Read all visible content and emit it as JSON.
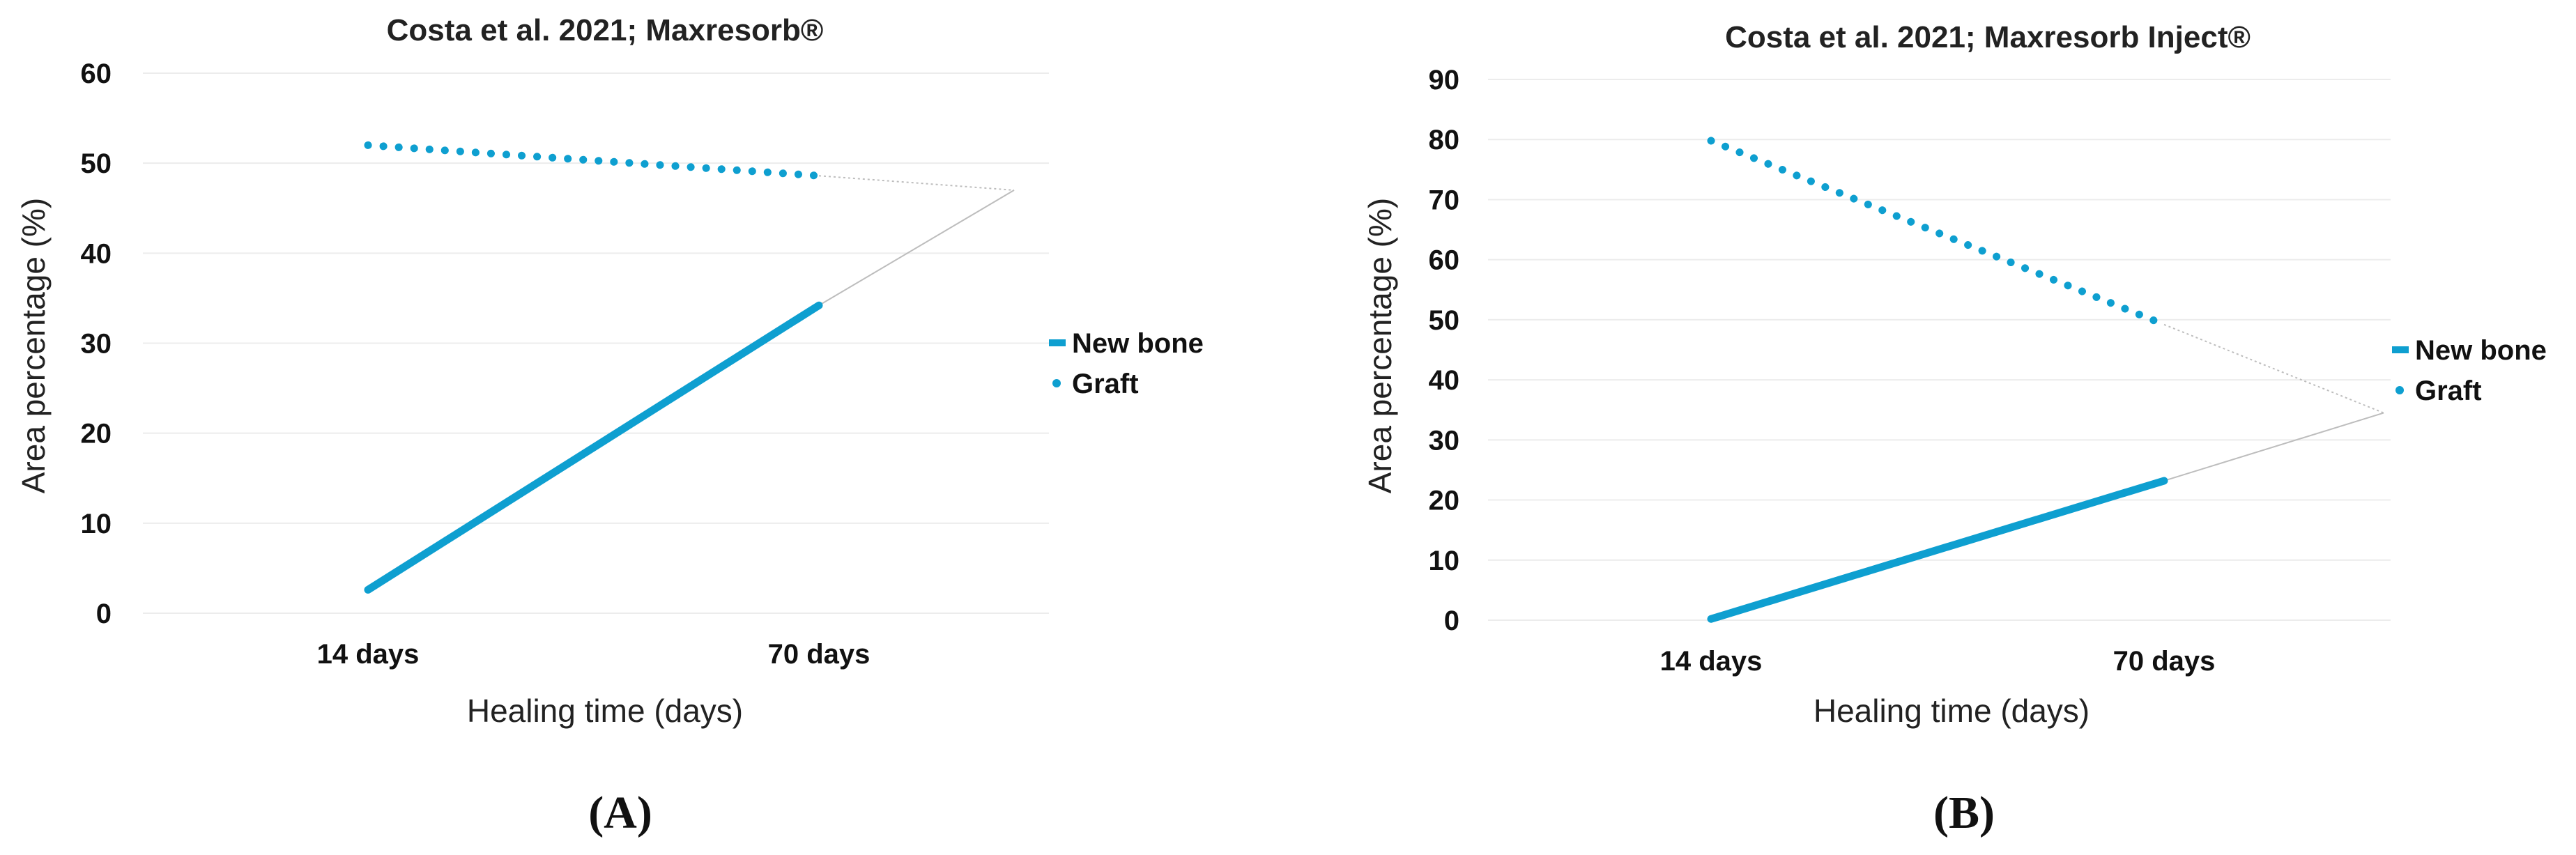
{
  "colors": {
    "series": "#0e9fd0",
    "grid": "#ececec",
    "trend": "#bdbdbd",
    "text": "#222222"
  },
  "chart_data": [
    {
      "panel_label": "(A)",
      "type": "line",
      "title": "Costa et al. 2021; Maxresorb®",
      "xlabel": "Healing time (days)",
      "ylabel": "Area percentage (%)",
      "categories": [
        "14 days",
        "70 days"
      ],
      "ylim": [
        0,
        60
      ],
      "yticks": [
        0,
        10,
        20,
        30,
        40,
        50,
        60
      ],
      "grid": true,
      "legend_position": "right",
      "series": [
        {
          "name": "New bone",
          "style": "solid",
          "values": [
            2.6,
            34.2
          ]
        },
        {
          "name": "Graft",
          "style": "dotted",
          "values": [
            52.0,
            48.6
          ]
        }
      ],
      "trendline_meet": 47.0
    },
    {
      "panel_label": "(B)",
      "type": "line",
      "title": "Costa et al. 2021; Maxresorb Inject®",
      "xlabel": "Healing time (days)",
      "ylabel": "Area percentage (%)",
      "categories": [
        "14 days",
        "70 days"
      ],
      "ylim": [
        0,
        90
      ],
      "yticks": [
        0,
        10,
        20,
        30,
        40,
        50,
        60,
        70,
        80,
        90
      ],
      "grid": true,
      "legend_position": "right",
      "series": [
        {
          "name": "New bone",
          "style": "solid",
          "values": [
            0.2,
            23.2
          ]
        },
        {
          "name": "Graft",
          "style": "dotted",
          "values": [
            79.8,
            49.2
          ]
        }
      ],
      "trendline_meet": 34.5
    }
  ]
}
